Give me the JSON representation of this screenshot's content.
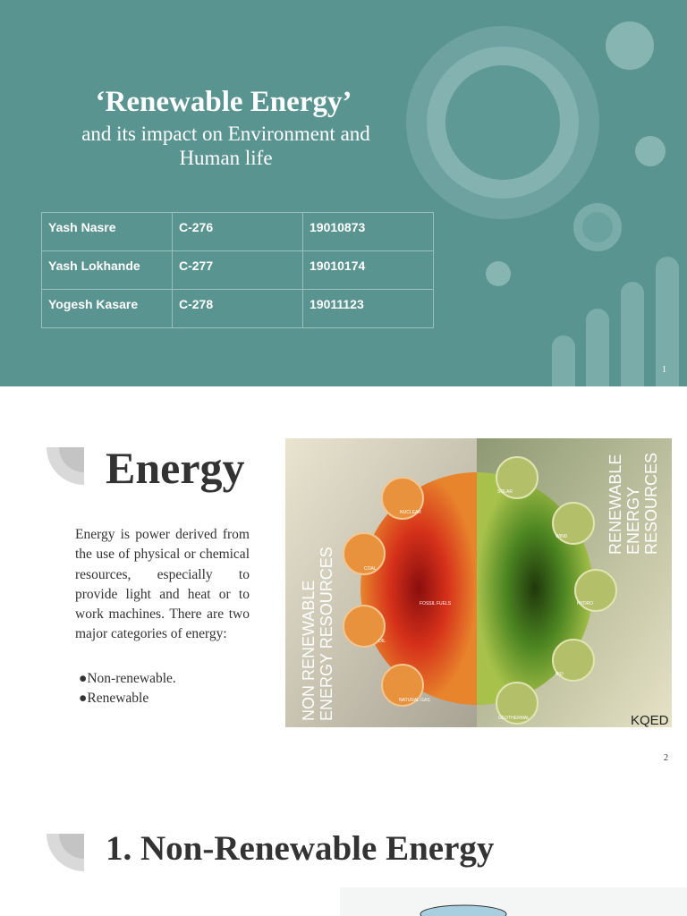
{
  "slides": [
    {
      "title": "‘Renewable Energy’",
      "subtitle": "and its impact on Environment and Human life",
      "table": {
        "rows": [
          [
            "Yash Nasre",
            "C-276",
            "19010873"
          ],
          [
            "Yash Lokhande",
            "C-277",
            "19010174"
          ],
          [
            "Yogesh Kasare",
            "C-278",
            "19011123"
          ]
        ]
      },
      "page_number": "1"
    },
    {
      "title": "Energy",
      "body": "Energy is power derived from the use of physical or chemical resources, especially to provide light and heat or to work machines. There are two major categories of energy:",
      "bullets": [
        "●Non-renewable.",
        "●Renewable"
      ],
      "image": {
        "left_label": [
          "NON RENEWABLE",
          "ENERGY RESOURCES"
        ],
        "right_label": [
          "RENEWABLE",
          "ENERGY",
          "RESOURCES"
        ],
        "center_label": "FOSSIL FUELS",
        "left_items": [
          "NUCLEAR",
          "COAL",
          "OIL",
          "NATURAL GAS"
        ],
        "right_items": [
          "SOLAR",
          "WIND",
          "HYDRO",
          "BIO",
          "GEOTHERMAL"
        ],
        "brand": "KQED"
      },
      "page_number": "2"
    },
    {
      "title": "1. Non-Renewable Energy"
    }
  ]
}
